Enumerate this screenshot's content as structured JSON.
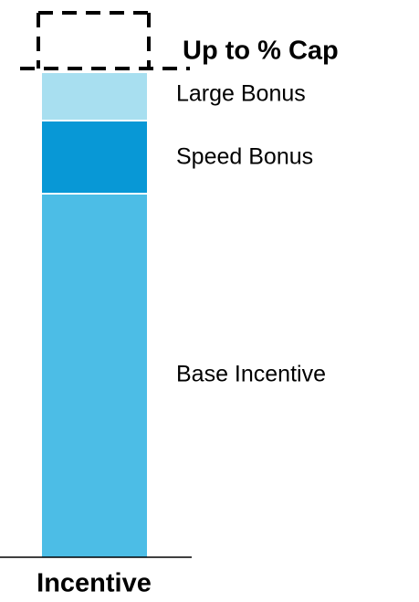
{
  "cap_label": "Up to % Cap",
  "segments": [
    {
      "label": "Large Bonus"
    },
    {
      "label": "Speed Bonus"
    },
    {
      "label": "Base Incentive"
    }
  ],
  "column_label": "Incentive"
}
